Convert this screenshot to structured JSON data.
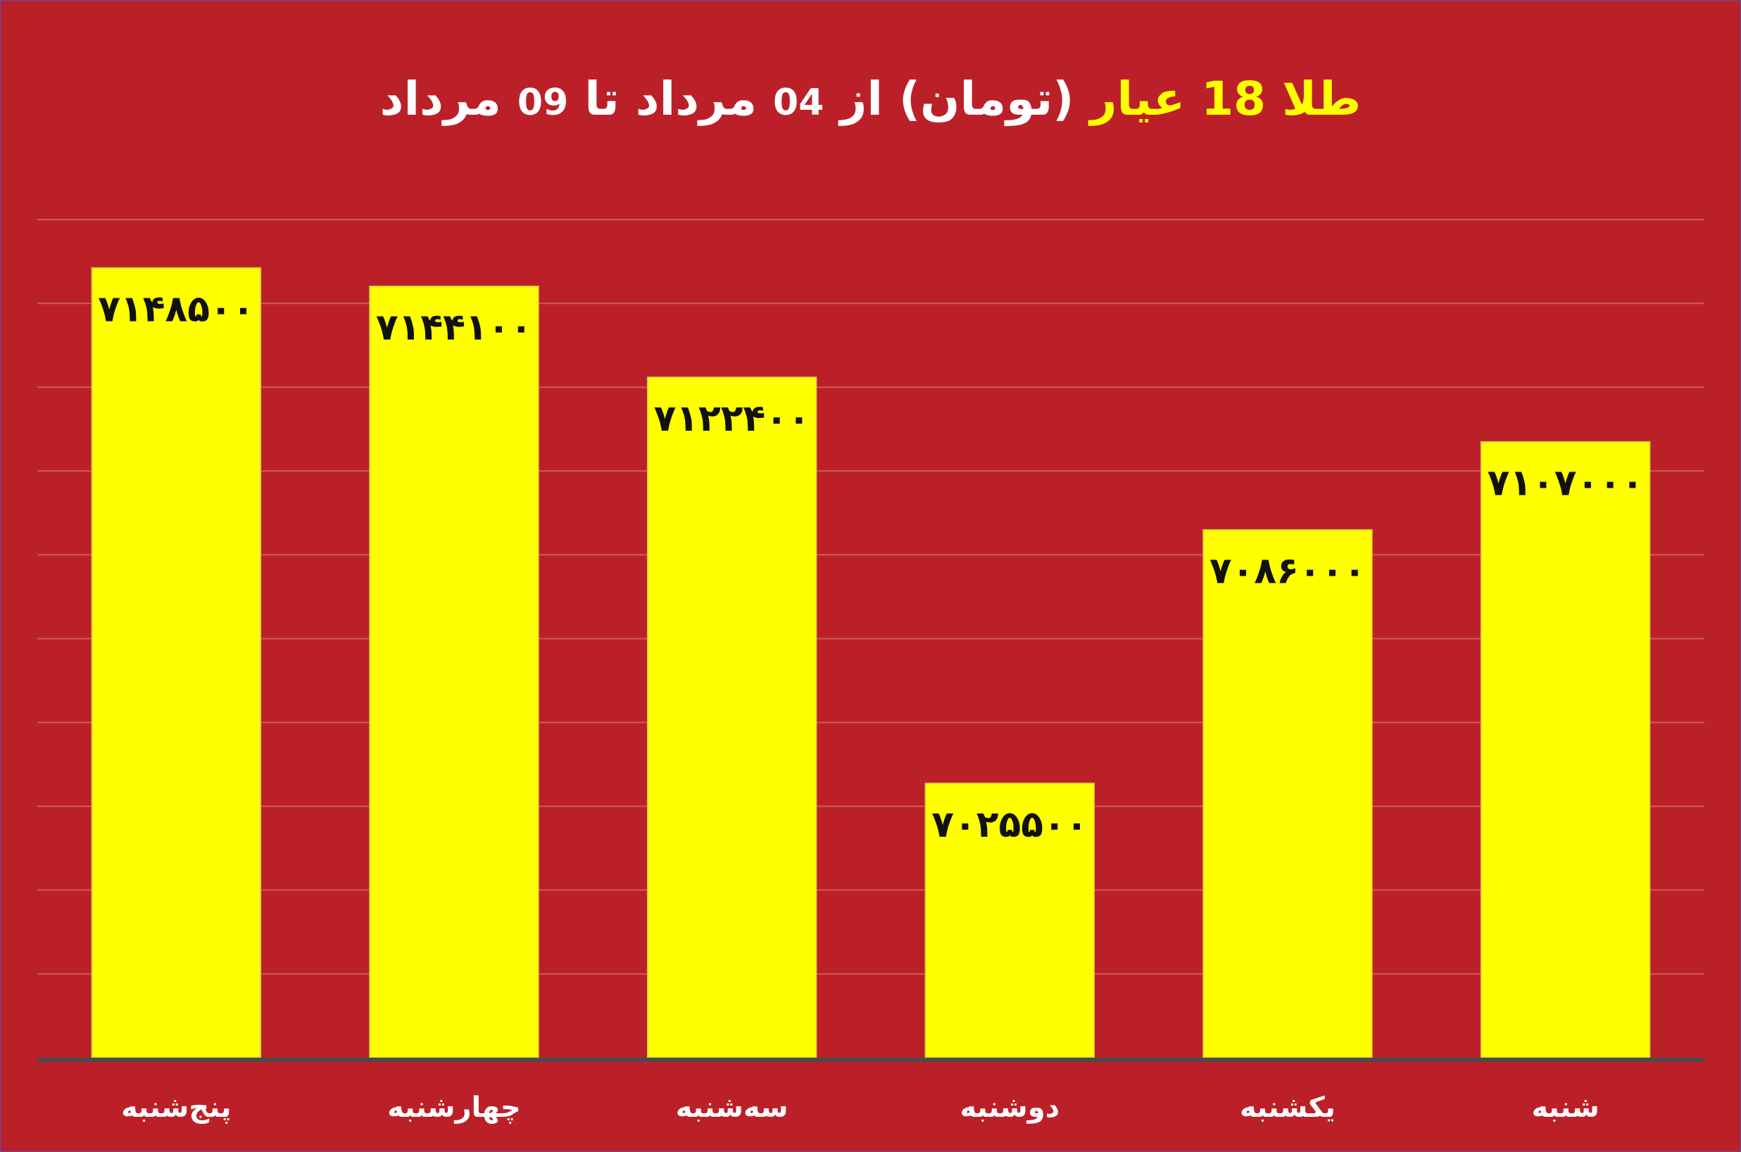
{
  "title": {
    "highlight": "طلا 18 عیار",
    "part1": " (تومان) از ",
    "num1": "04",
    "part2": " مرداد تا ",
    "num2": "09",
    "part3": " مرداد"
  },
  "colors": {
    "background": "#bb2029",
    "bar": "#ffff00",
    "title_text": "#ffffff",
    "title_highlight": "#ffff00",
    "gridline": "#cc5a5f",
    "axis": "#4a4a4a",
    "data_label": "#111111",
    "category_label": "#ffffff"
  },
  "chart_data": {
    "type": "bar",
    "categories": [
      "پنج‌شنبه",
      "چهارشنبه",
      "سه‌شنبه",
      "دوشنبه",
      "یکشنبه",
      "شنبه"
    ],
    "values": [
      7148500,
      7144100,
      7122400,
      7025500,
      7086000,
      7107000
    ],
    "data_labels": [
      "۷۱۴۸۵۰۰",
      "۷۱۴۴۱۰۰",
      "۷۱۲۲۴۰۰",
      "۷۰۲۵۵۰۰",
      "۷۰۸۶۰۰۰",
      "۷۱۰۷۰۰۰"
    ],
    "ylim": [
      6960000,
      7160000
    ],
    "ytick_step": 20000,
    "grid": true,
    "legend": "none",
    "xlabel": "",
    "ylabel": ""
  }
}
